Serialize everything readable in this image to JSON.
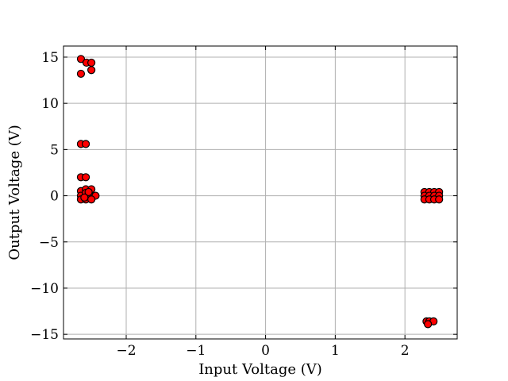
{
  "chart_data": {
    "type": "scatter",
    "title": "",
    "xlabel": "Input Voltage (V)",
    "ylabel": "Output Voltage (V)",
    "xlim": [
      -2.9,
      2.75
    ],
    "ylim": [
      -15.5,
      16.2
    ],
    "xticks": [
      -2,
      -1,
      0,
      1,
      2
    ],
    "yticks": [
      -15,
      -10,
      -5,
      0,
      5,
      10,
      15
    ],
    "grid": true,
    "marker_color": "#ff0000",
    "marker_edge_color": "#000000",
    "series": [
      {
        "points": [
          {
            "x": -2.65,
            "y": 14.8
          },
          {
            "x": -2.57,
            "y": 14.4
          },
          {
            "x": -2.5,
            "y": 14.4
          },
          {
            "x": -2.65,
            "y": 13.2
          },
          {
            "x": -2.5,
            "y": 13.6
          },
          {
            "x": -2.65,
            "y": 5.6
          },
          {
            "x": -2.58,
            "y": 5.6
          },
          {
            "x": -2.65,
            "y": 2.0
          },
          {
            "x": -2.58,
            "y": 2.0
          },
          {
            "x": -2.65,
            "y": 0.5
          },
          {
            "x": -2.58,
            "y": 0.7
          },
          {
            "x": -2.5,
            "y": 0.7
          },
          {
            "x": -2.65,
            "y": 0.0
          },
          {
            "x": -2.58,
            "y": 0.3
          },
          {
            "x": -2.52,
            "y": 0.0
          },
          {
            "x": -2.44,
            "y": 0.0
          },
          {
            "x": -2.65,
            "y": -0.4
          },
          {
            "x": -2.58,
            "y": -0.4
          },
          {
            "x": -2.5,
            "y": -0.4
          },
          {
            "x": -2.54,
            "y": 0.4
          },
          {
            "x": -2.6,
            "y": -0.2
          },
          {
            "x": 2.28,
            "y": 0.4
          },
          {
            "x": 2.35,
            "y": 0.4
          },
          {
            "x": 2.42,
            "y": 0.4
          },
          {
            "x": 2.49,
            "y": 0.4
          },
          {
            "x": 2.28,
            "y": 0.0
          },
          {
            "x": 2.35,
            "y": 0.0
          },
          {
            "x": 2.42,
            "y": 0.0
          },
          {
            "x": 2.49,
            "y": 0.0
          },
          {
            "x": 2.28,
            "y": -0.4
          },
          {
            "x": 2.35,
            "y": -0.4
          },
          {
            "x": 2.42,
            "y": -0.4
          },
          {
            "x": 2.49,
            "y": -0.4
          },
          {
            "x": 2.31,
            "y": -13.6
          },
          {
            "x": 2.35,
            "y": -13.6
          },
          {
            "x": 2.41,
            "y": -13.6
          },
          {
            "x": 2.33,
            "y": -13.9
          }
        ]
      }
    ]
  }
}
